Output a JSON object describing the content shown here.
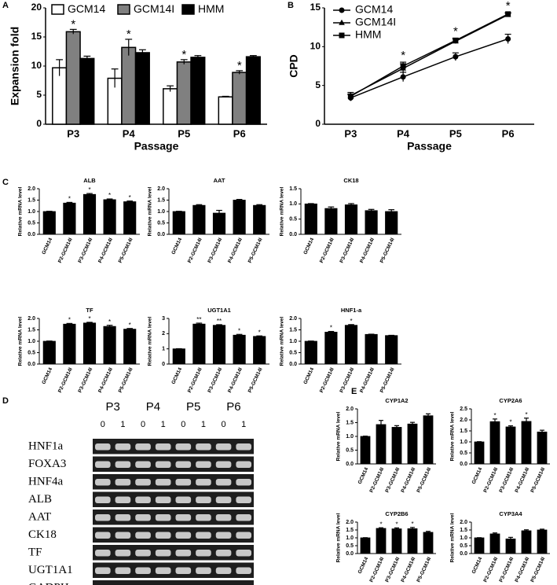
{
  "panel_labels": [
    "A",
    "B",
    "C",
    "D",
    "E"
  ],
  "chart_data": [
    {
      "type": "bar",
      "ylabel": "Expansion fold",
      "xlabel": "Passage",
      "categories": [
        "P3",
        "P4",
        "P5",
        "P6"
      ],
      "ylim": [
        0,
        20
      ],
      "yticks": [
        0,
        5,
        10,
        15,
        20
      ],
      "series": [
        {
          "name": "GCM14",
          "color": "#ffffff",
          "values": [
            9.7,
            7.9,
            6.1,
            4.7
          ],
          "errors": [
            1.4,
            1.6,
            0.5,
            0.1
          ]
        },
        {
          "name": "GCM14I",
          "color": "#808080",
          "values": [
            15.9,
            13.2,
            10.7,
            8.9
          ],
          "errors": [
            0.4,
            1.4,
            0.4,
            0.3
          ],
          "significance": [
            "*",
            "*",
            "*",
            "*"
          ]
        },
        {
          "name": "HMM",
          "color": "#000000",
          "values": [
            11.3,
            12.3,
            11.5,
            11.6
          ],
          "errors": [
            0.4,
            0.5,
            0.3,
            0.2
          ]
        }
      ]
    },
    {
      "type": "line",
      "ylabel": "CPD",
      "xlabel": "Passage",
      "categories": [
        "P3",
        "P4",
        "P5",
        "P6"
      ],
      "ylim": [
        0,
        15
      ],
      "yticks": [
        0,
        5,
        10,
        15
      ],
      "significance": [
        null,
        "*",
        "*",
        "*"
      ],
      "series": [
        {
          "name": "GCM14",
          "color": "#000000",
          "marker": "circle",
          "values": [
            3.4,
            6.1,
            8.7,
            11.0
          ],
          "errors": [
            0.4,
            0.6,
            0.5,
            0.6
          ]
        },
        {
          "name": "GCM14I",
          "color": "#000000",
          "marker": "triangle",
          "values": [
            3.7,
            7.2,
            10.7,
            14.1
          ],
          "errors": [
            0.4,
            0.6,
            0.3,
            0.2
          ]
        },
        {
          "name": "HMM",
          "color": "#000000",
          "marker": "square",
          "values": [
            3.6,
            7.5,
            10.8,
            14.2
          ],
          "errors": [
            0.3,
            0.5,
            0.3,
            0.2
          ]
        }
      ]
    },
    {
      "type": "bar",
      "title": "ALB",
      "ylabel": "Relative mRNA level",
      "color": "#000000",
      "categories": [
        "GCM14",
        "P2-GCM14I",
        "P3-GCM14I",
        "P4-GCM14I",
        "P5-GCM14I"
      ],
      "values": [
        1.0,
        1.37,
        1.75,
        1.52,
        1.43
      ],
      "errors": [
        0.01,
        0.03,
        0.04,
        0.03,
        0.03
      ],
      "significance": [
        null,
        "*",
        "*",
        "*",
        "*"
      ],
      "ylim": [
        0,
        2
      ],
      "yticks": [
        {
          "value": 0,
          "label": "0.0"
        },
        0.5,
        {
          "value": 1,
          "label": "1.0"
        },
        1.5,
        {
          "value": 2,
          "label": "2.0"
        }
      ]
    },
    {
      "type": "bar",
      "title": "AAT",
      "ylabel": "Relative mRNA level",
      "color": "#000000",
      "categories": [
        "GCM14",
        "P2-GCM14I",
        "P3-GCM14I",
        "P4-GCM14I",
        "P5-GCM14I"
      ],
      "values": [
        1.0,
        1.27,
        0.93,
        1.5,
        1.27
      ],
      "errors": [
        0.01,
        0.03,
        0.12,
        0.03,
        0.03
      ],
      "ylim": [
        0,
        2
      ],
      "yticks": [
        {
          "value": 0,
          "label": "0.0"
        },
        0.5,
        {
          "value": 1,
          "label": "1.0"
        },
        1.5,
        {
          "value": 2,
          "label": "2.0"
        }
      ]
    },
    {
      "type": "bar",
      "title": "CK18",
      "ylabel": "Relative mRNA level",
      "color": "#000000",
      "categories": [
        "GCM14",
        "P2-GCM14I",
        "P3-GCM14I",
        "P4-GCM14I",
        "P5-GCM14I"
      ],
      "values": [
        1.0,
        0.85,
        0.97,
        0.78,
        0.75
      ],
      "errors": [
        0.01,
        0.05,
        0.04,
        0.04,
        0.06
      ],
      "ylim": [
        0,
        1.5
      ],
      "yticks": [
        {
          "value": 0,
          "label": "0.0"
        },
        0.5,
        {
          "value": 1,
          "label": "1.0"
        },
        1.5
      ]
    },
    {
      "type": "bar",
      "title": "TF",
      "ylabel": "Relative mRNA level",
      "color": "#000000",
      "categories": [
        "GCM14",
        "P2-GCM14I",
        "P3-GCM14I",
        "P4-GCM14I",
        "P5-GCM14I"
      ],
      "values": [
        1.0,
        1.75,
        1.8,
        1.65,
        1.53
      ],
      "errors": [
        0.01,
        0.03,
        0.03,
        0.05,
        0.03
      ],
      "significance": [
        null,
        "*",
        "*",
        "*",
        "*"
      ],
      "ylim": [
        0,
        2
      ],
      "yticks": [
        {
          "value": 0,
          "label": "0.0"
        },
        0.5,
        {
          "value": 1,
          "label": "1.0"
        },
        1.5,
        {
          "value": 2,
          "label": "2.0"
        }
      ]
    },
    {
      "type": "bar",
      "title": "UGT1A1",
      "ylabel": "Relative mRNA level",
      "color": "#000000",
      "categories": [
        "GCM14",
        "P2-GCM14I",
        "P3-GCM14I",
        "P4-GCM14I",
        "P5-GCM14I"
      ],
      "values": [
        1.0,
        2.63,
        2.55,
        1.9,
        1.82
      ],
      "errors": [
        0.01,
        0.06,
        0.04,
        0.05,
        0.03
      ],
      "significance": [
        null,
        "**",
        "**",
        "*",
        "*"
      ],
      "ylim": [
        0,
        3
      ],
      "yticks": [
        0,
        1,
        2,
        3
      ]
    },
    {
      "type": "bar",
      "title": "HNF1-a",
      "ylabel": "Relative mRNA level",
      "color": "#000000",
      "categories": [
        "GCM14",
        "P2-GCM14I",
        "P3-GCM14I",
        "P4-GCM14I",
        "P5-GCM14I"
      ],
      "values": [
        1.0,
        1.4,
        1.7,
        1.3,
        1.25
      ],
      "errors": [
        0.01,
        0.03,
        0.03,
        0.01,
        0.01
      ],
      "significance": [
        null,
        "*",
        "*",
        null,
        null
      ],
      "ylim": [
        0,
        2
      ],
      "yticks": [
        {
          "value": 0,
          "label": "0.0"
        },
        0.5,
        {
          "value": 1,
          "label": "1.0"
        },
        1.5,
        {
          "value": 2,
          "label": "2.0"
        }
      ]
    },
    {
      "type": "bar",
      "title": "CYP1A2",
      "ylabel": "Relative mRNA level",
      "color": "#000000",
      "categories": [
        "GCM14",
        "P2-GCM14I",
        "P3-GCM14I",
        "P4-GCM14I",
        "P5-GCM14I"
      ],
      "values": [
        1.0,
        1.43,
        1.33,
        1.45,
        1.75
      ],
      "errors": [
        0.01,
        0.15,
        0.06,
        0.06,
        0.07
      ],
      "ylim": [
        0,
        2
      ],
      "yticks": [
        {
          "value": 0,
          "label": "0.0"
        },
        0.5,
        {
          "value": 1,
          "label": "1.0"
        },
        1.5,
        {
          "value": 2,
          "label": "2.0"
        }
      ]
    },
    {
      "type": "bar",
      "title": "CYP2A6",
      "ylabel": "Relative mRNA level",
      "color": "#000000",
      "categories": [
        "GCM14",
        "P2-GCM14I",
        "P3-GCM14I",
        "P4-GCM14I",
        "P5-GCM14I"
      ],
      "values": [
        1.0,
        1.92,
        1.68,
        1.93,
        1.45
      ],
      "errors": [
        0.01,
        0.12,
        0.05,
        0.15,
        0.08
      ],
      "significance": [
        null,
        "*",
        "*",
        "*",
        null
      ],
      "ylim": [
        0,
        2.5
      ],
      "yticks": [
        {
          "value": 0,
          "label": "0.0"
        },
        0.5,
        {
          "value": 1,
          "label": "1.0"
        },
        1.5,
        {
          "value": 2,
          "label": "2.0"
        },
        2.5
      ]
    },
    {
      "type": "bar",
      "title": "CYP2B6",
      "ylabel": "Relative mRNA level",
      "color": "#000000",
      "categories": [
        "GCM14",
        "P2-GCM14I",
        "P3-GCM14I",
        "P4-GCM14I",
        "P5-GCM14I"
      ],
      "values": [
        1.0,
        1.6,
        1.57,
        1.58,
        1.35
      ],
      "errors": [
        0.01,
        0.04,
        0.06,
        0.08,
        0.06
      ],
      "significance": [
        null,
        "*",
        "*",
        "*",
        null
      ],
      "ylim": [
        0,
        2
      ],
      "yticks": [
        {
          "value": 0,
          "label": "0.0"
        },
        0.5,
        {
          "value": 1,
          "label": "1.0"
        },
        1.5,
        {
          "value": 2,
          "label": "2.0"
        }
      ]
    },
    {
      "type": "bar",
      "title": "CYP3A4",
      "ylabel": "Relative mRNA level",
      "color": "#000000",
      "categories": [
        "GCM14",
        "P2-GCM14I",
        "P3-GCM14I",
        "P4-GCM14I",
        "P5-GCM14I"
      ],
      "values": [
        1.0,
        1.25,
        0.93,
        1.45,
        1.5
      ],
      "errors": [
        0.01,
        0.06,
        0.1,
        0.06,
        0.05
      ],
      "ylim": [
        0,
        2
      ],
      "yticks": [
        {
          "value": 0,
          "label": "0.0"
        },
        0.5,
        {
          "value": 1,
          "label": "1.0"
        },
        1.5,
        {
          "value": 2,
          "label": "2.0"
        }
      ]
    }
  ],
  "gel": {
    "passages": [
      "P3",
      "P4",
      "P5",
      "P6"
    ],
    "lanes": [
      "0",
      "1",
      "0",
      "1",
      "0",
      "1",
      "0",
      "1"
    ],
    "genes": [
      "HNF1a",
      "FOXA3",
      "HNF4a",
      "ALB",
      "AAT",
      "CK18",
      "TF",
      "UGT1A1",
      "GADPH"
    ]
  }
}
